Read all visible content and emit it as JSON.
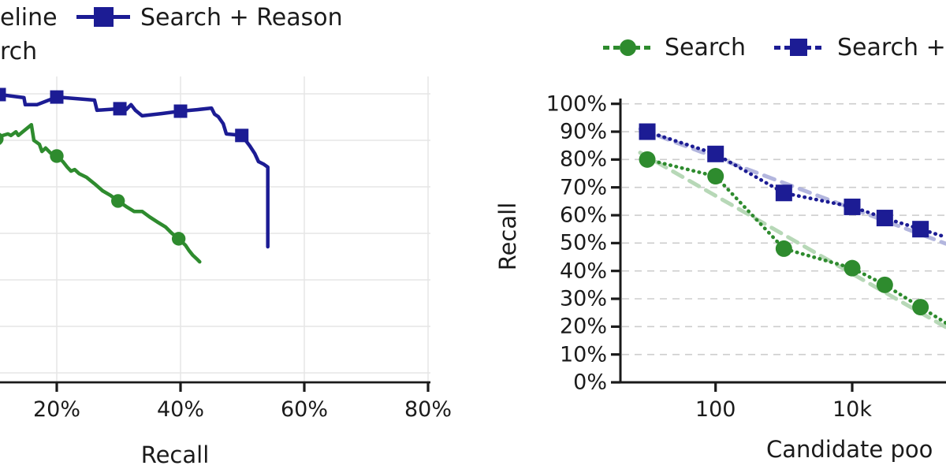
{
  "colors": {
    "navy": "#1c1c94",
    "green": "#2e8b2e",
    "trend_blue": "#b3b6de",
    "trend_green": "#b7d8b7",
    "grid_left": "#e5e5e5",
    "grid_right": "#cdcdcd",
    "axis": "#1a1a1a",
    "text": "#1b1b1b"
  },
  "left_chart": {
    "legend": {
      "entry1_fragment": "eline",
      "entry2": "Search + Reason",
      "entry3_fragment": "rch"
    },
    "xlabel": "Recall",
    "x_tick_labels": [
      "20%",
      "40%",
      "60%",
      "80%"
    ]
  },
  "right_chart": {
    "legend": {
      "entry1": "Search",
      "entry2_fragment": "Search +"
    },
    "ylabel": "Recall",
    "xlabel_fragment": "Candidate poo",
    "y_tick_labels": [
      "100%",
      "90%",
      "80%",
      "70%",
      "60%",
      "50%",
      "40%",
      "30%",
      "20%",
      "10%",
      "0%"
    ],
    "x_tick_labels": [
      "100",
      "10k"
    ]
  },
  "chart_data": [
    {
      "type": "line",
      "panel": "left",
      "xlabel": "Recall",
      "x_unit": "percent",
      "x_ticks": [
        20,
        40,
        60,
        80
      ],
      "x_visible_range": [
        10.8,
        80.4
      ],
      "y_axis_note": "y-axis cropped off-screen at left; y values are fraction of visible plot height above the x-axis",
      "grid": "light solid, vertical at x ticks and 7 horizontal lines",
      "series": [
        {
          "name": "Search",
          "marker": "circle",
          "line": "solid",
          "color_key": "green",
          "points": [
            [
              10.8,
              0.8
            ],
            [
              12.1,
              0.808
            ],
            [
              12.6,
              0.803
            ],
            [
              13.4,
              0.815
            ],
            [
              13.8,
              0.803
            ],
            [
              14.4,
              0.813
            ],
            [
              15.9,
              0.838
            ],
            [
              16.3,
              0.787
            ],
            [
              17.2,
              0.774
            ],
            [
              17.6,
              0.751
            ],
            [
              18.2,
              0.762
            ],
            [
              19.0,
              0.746
            ],
            [
              20,
              0.736
            ],
            [
              21.0,
              0.718
            ],
            [
              21.7,
              0.7
            ],
            [
              22.3,
              0.687
            ],
            [
              22.9,
              0.692
            ],
            [
              23.6,
              0.679
            ],
            [
              24.8,
              0.667
            ],
            [
              26.1,
              0.646
            ],
            [
              27.4,
              0.623
            ],
            [
              28.7,
              0.608
            ],
            [
              29.9,
              0.59
            ],
            [
              31.2,
              0.572
            ],
            [
              32.5,
              0.556
            ],
            [
              33.8,
              0.556
            ],
            [
              35.0,
              0.538
            ],
            [
              36.3,
              0.521
            ],
            [
              37.6,
              0.505
            ],
            [
              38.6,
              0.485
            ],
            [
              39.7,
              0.467
            ],
            [
              40.8,
              0.446
            ],
            [
              41.4,
              0.428
            ],
            [
              42.0,
              0.413
            ],
            [
              42.7,
              0.4
            ],
            [
              43.1,
              0.392
            ]
          ],
          "marker_points": [
            [
              10.3,
              0.792
            ],
            [
              20,
              0.736
            ],
            [
              29.9,
              0.59
            ],
            [
              39.7,
              0.467
            ]
          ]
        },
        {
          "name": "Search + Reason",
          "marker": "square",
          "line": "solid",
          "color_key": "navy",
          "points": [
            [
              10.8,
              0.936
            ],
            [
              14.7,
              0.926
            ],
            [
              14.9,
              0.903
            ],
            [
              16.8,
              0.903
            ],
            [
              20,
              0.928
            ],
            [
              26.1,
              0.918
            ],
            [
              26.5,
              0.885
            ],
            [
              30.2,
              0.89
            ],
            [
              31.2,
              0.887
            ],
            [
              32.0,
              0.903
            ],
            [
              32.7,
              0.885
            ],
            [
              33.8,
              0.867
            ],
            [
              36.9,
              0.874
            ],
            [
              40,
              0.882
            ],
            [
              42.7,
              0.887
            ],
            [
              45.0,
              0.892
            ],
            [
              45.5,
              0.872
            ],
            [
              46.1,
              0.864
            ],
            [
              46.9,
              0.841
            ],
            [
              47.4,
              0.808
            ],
            [
              49.9,
              0.803
            ],
            [
              51.2,
              0.769
            ],
            [
              52.0,
              0.744
            ],
            [
              52.6,
              0.718
            ],
            [
              53.4,
              0.71
            ],
            [
              54.1,
              0.7
            ],
            [
              54.1,
              0.441
            ]
          ],
          "marker_points": [
            [
              10.7,
              0.936
            ],
            [
              20,
              0.928
            ],
            [
              30.2,
              0.89
            ],
            [
              40,
              0.882
            ],
            [
              49.9,
              0.803
            ]
          ]
        }
      ]
    },
    {
      "type": "line",
      "panel": "right",
      "x_scale": "log",
      "xlabel_visible": "Candidate poo",
      "ylabel": "Recall",
      "ylim_pct": [
        0,
        100
      ],
      "y_ticks_pct": [
        0,
        10,
        20,
        30,
        40,
        50,
        60,
        70,
        80,
        90,
        100
      ],
      "x_ticks": [
        {
          "value": 100,
          "label": "100"
        },
        {
          "value": 10000,
          "label": "10k"
        }
      ],
      "grid": "horizontal dashed",
      "series": [
        {
          "name": "Search",
          "marker": "circle",
          "line": "dotted",
          "color_key": "green",
          "x": [
            10,
            100,
            1000,
            10000,
            30000,
            100000
          ],
          "y_pct": [
            80,
            74,
            48,
            41,
            35,
            27
          ],
          "trend": {
            "style": "dashed",
            "color_key": "trend_green",
            "y_pct_at_x10": 81,
            "slope_pct_per_decade": -14
          }
        },
        {
          "name": "Search +",
          "marker": "square",
          "line": "dotted",
          "color_key": "navy",
          "x": [
            10,
            100,
            1000,
            10000,
            30000,
            100000
          ],
          "y_pct": [
            90,
            82,
            68,
            63,
            59,
            55
          ],
          "trend": {
            "style": "dashed",
            "color_key": "trend_blue",
            "y_pct_at_x10": 90,
            "slope_pct_per_decade": -9.2
          }
        }
      ]
    }
  ]
}
